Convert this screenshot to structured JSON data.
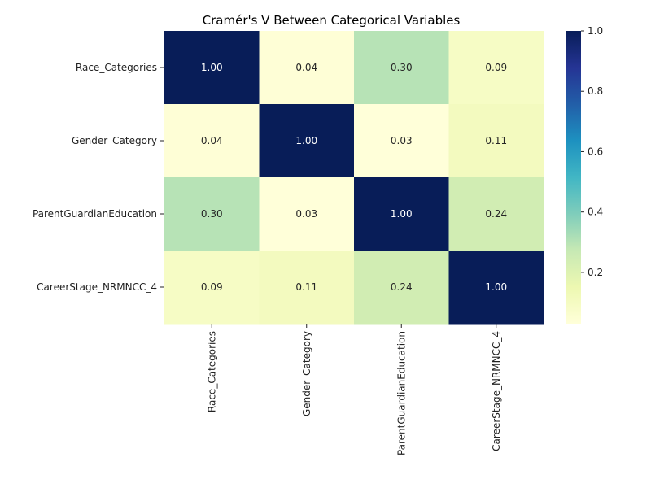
{
  "chart_data": {
    "type": "heatmap",
    "title": "Cramér's V Between Categorical Variables",
    "rows": [
      "Race_Categories",
      "Gender_Category",
      "ParentGuardianEducation",
      "CareerStage_NRMNCC_4"
    ],
    "columns": [
      "Race_Categories",
      "Gender_Category",
      "ParentGuardianEducation",
      "CareerStage_NRMNCC_4"
    ],
    "values": [
      [
        1.0,
        0.04,
        0.3,
        0.09
      ],
      [
        0.04,
        1.0,
        0.03,
        0.11
      ],
      [
        0.3,
        0.03,
        1.0,
        0.24
      ],
      [
        0.09,
        0.11,
        0.24,
        1.0
      ]
    ],
    "value_labels": [
      [
        "1.00",
        "0.04",
        "0.30",
        "0.09"
      ],
      [
        "0.04",
        "1.00",
        "0.03",
        "0.11"
      ],
      [
        "0.30",
        "0.03",
        "1.00",
        "0.24"
      ],
      [
        "0.09",
        "0.11",
        "0.24",
        "1.00"
      ]
    ],
    "colorscale": "YlGnBu",
    "colorbar": {
      "range": [
        0.03,
        1.0
      ],
      "ticks": [
        0.2,
        0.4,
        0.6,
        0.8,
        1.0
      ],
      "tick_labels": [
        "0.2",
        "0.4",
        "0.6",
        "0.8",
        "1.0"
      ]
    }
  }
}
